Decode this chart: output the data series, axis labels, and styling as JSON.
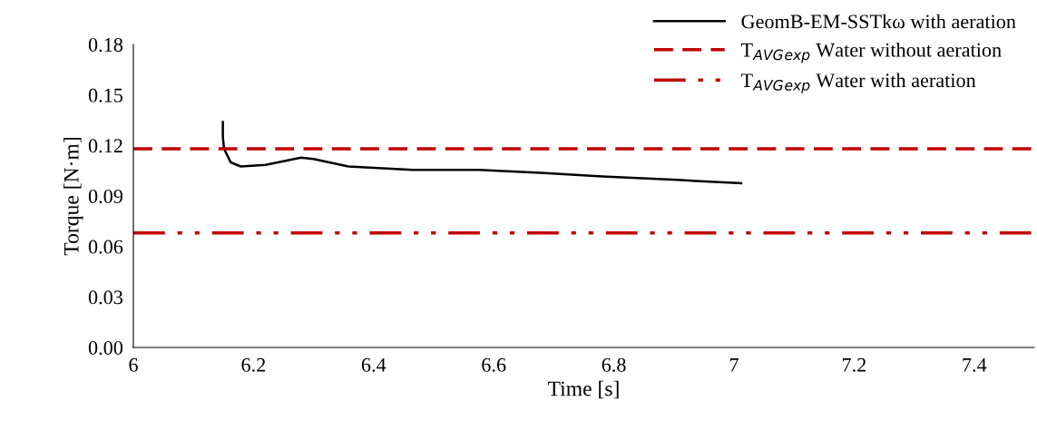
{
  "chart_data": {
    "type": "line",
    "xlabel": "Time [s]",
    "ylabel": "Torque [N·m]",
    "xlim": [
      6,
      7.5
    ],
    "xticks": [
      6,
      6.2,
      6.4,
      6.6,
      6.8,
      7,
      7.2,
      7.4
    ],
    "ylim": [
      0,
      0.18
    ],
    "yticks": [
      {
        "value": 0,
        "label": "0.00"
      },
      {
        "value": 0.03,
        "label": "0.03"
      },
      {
        "value": 0.06,
        "label": "0.06"
      },
      {
        "value": 0.09,
        "label": "0.09"
      },
      {
        "value": 0.12,
        "label": "0.12"
      },
      {
        "value": 0.15,
        "label": "0.15"
      },
      {
        "value": 0.18,
        "label": "0.18"
      }
    ],
    "series": [
      {
        "name": "GeomB-EM-SSTkω with aeration",
        "color": "#000000",
        "x": [
          6.149,
          6.149,
          6.151,
          6.162,
          6.179,
          6.22,
          6.279,
          6.3,
          6.358,
          6.465,
          6.575,
          6.678,
          6.781,
          6.906,
          7.012
        ],
        "values": [
          0.1339,
          0.125,
          0.118,
          0.11,
          0.1075,
          0.1085,
          0.1128,
          0.112,
          0.1075,
          0.1055,
          0.1055,
          0.1037,
          0.1016,
          0.0995,
          0.0976
        ]
      }
    ],
    "ref_lines": [
      {
        "axis": "y",
        "value": 0.118,
        "label": "T$_{AVG}$$_{exp}$ Water without aeration",
        "color": "#c00000",
        "line_style": "dashed"
      },
      {
        "axis": "y",
        "value": 0.068,
        "label": "T$_{AVG}$$_{exp}$ Water with aeration",
        "color": "#c00000",
        "line_style": "dashdotdot"
      }
    ],
    "legend": "top right",
    "grid": false
  }
}
